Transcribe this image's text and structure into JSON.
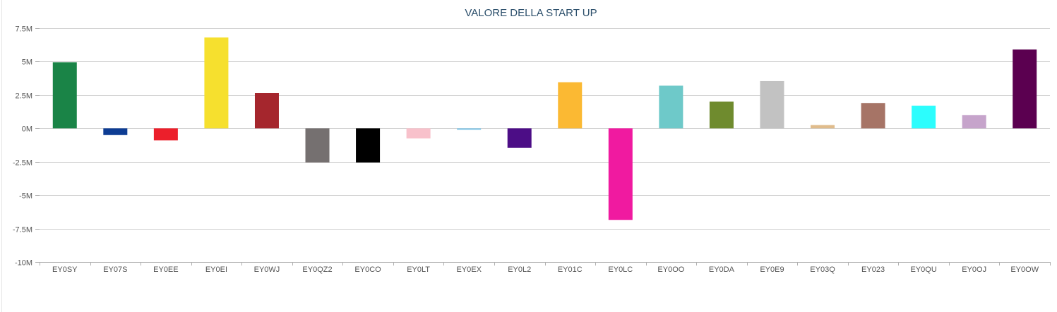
{
  "chart_data": {
    "type": "bar",
    "title": "VALORE DELLA START UP",
    "xlabel": "",
    "ylabel": "",
    "ylim": [
      -10000000,
      7500000
    ],
    "y_ticks": [
      7500000,
      5000000,
      2500000,
      0,
      -2500000,
      -5000000,
      -7500000,
      -10000000
    ],
    "y_tick_labels": [
      "7.5M",
      "5M",
      "2.5M",
      "0M",
      "-2.5M",
      "-5M",
      "-7.5M",
      "-10M"
    ],
    "grid": true,
    "legend": "none",
    "categories": [
      "EY0SY",
      "EY07S",
      "EY0EE",
      "EY0EI",
      "EY0WJ",
      "EY0QZ2",
      "EY0CO",
      "EY0LT",
      "EY0EX",
      "EY0L2",
      "EY01C",
      "EY0LC",
      "EY0OO",
      "EY0DA",
      "EY0E9",
      "EY03Q",
      "EY023",
      "EY0QU",
      "EY0OJ",
      "EY0OW"
    ],
    "values": [
      4950000,
      -500000,
      -900000,
      6800000,
      2650000,
      -2550000,
      -2550000,
      -750000,
      -100000,
      -1450000,
      3450000,
      -6850000,
      3200000,
      2000000,
      3550000,
      250000,
      1900000,
      1700000,
      1000000,
      5900000
    ],
    "colors": [
      "#1a8447",
      "#0d3c93",
      "#ec1f2b",
      "#f6e02e",
      "#a5262d",
      "#757070",
      "#000000",
      "#f8c1cb",
      "#7dc3e6",
      "#4c0d86",
      "#fbb933",
      "#f01aa0",
      "#6ec9c9",
      "#6f8b2e",
      "#c2c2c2",
      "#e0bc8c",
      "#a67466",
      "#2cfdfd",
      "#c6a4cb",
      "#5b0050"
    ]
  }
}
